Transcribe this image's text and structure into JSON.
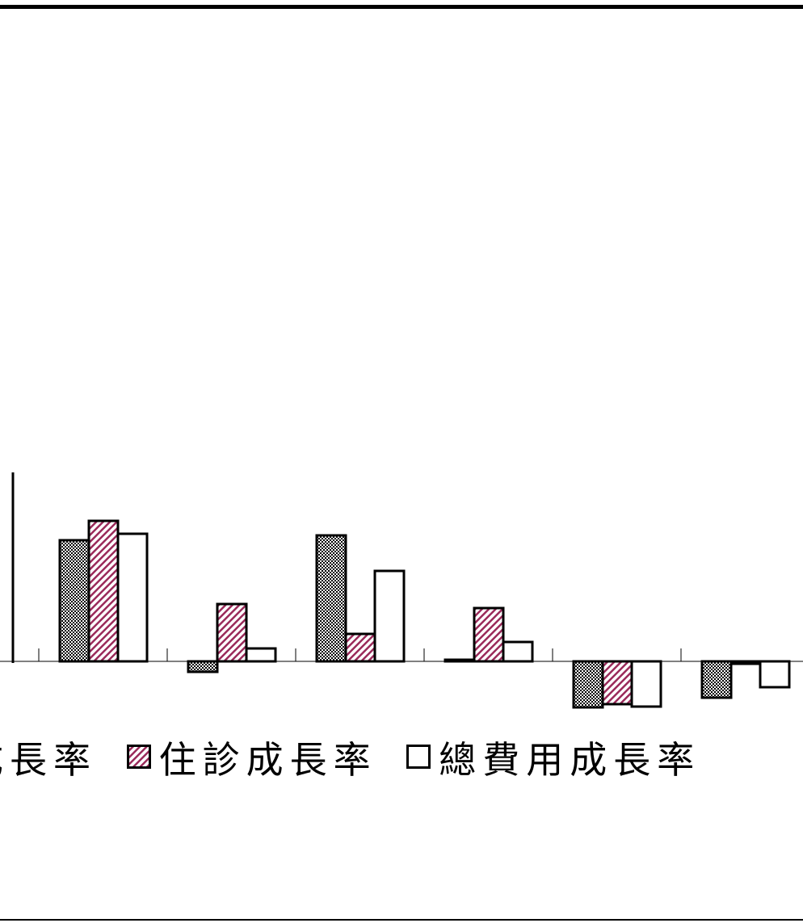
{
  "chart_data": {
    "type": "bar",
    "categories": [
      "",
      "",
      "",
      "",
      "",
      ""
    ],
    "series": [
      {
        "name": "門診成長率",
        "pattern": "checker",
        "values": [
          15.0,
          -1.3,
          15.6,
          0.2,
          -5.7,
          -4.5
        ]
      },
      {
        "name": "住診成長率",
        "pattern": "diagonal",
        "values": [
          17.4,
          7.1,
          3.4,
          6.6,
          -5.3,
          -0.3
        ]
      },
      {
        "name": "總費用成長率",
        "pattern": "none",
        "values": [
          15.8,
          1.6,
          11.2,
          2.4,
          -5.6,
          -3.2
        ]
      }
    ],
    "ylim": [
      -6,
      22
    ],
    "legend_visible_labels": [
      "成長率",
      "住診成長率",
      "總費用成長率"
    ],
    "colors": {
      "bar_stroke": "#000000",
      "hatch": "#9a2a5a",
      "checker": "#000000",
      "background": "#ffffff"
    }
  }
}
